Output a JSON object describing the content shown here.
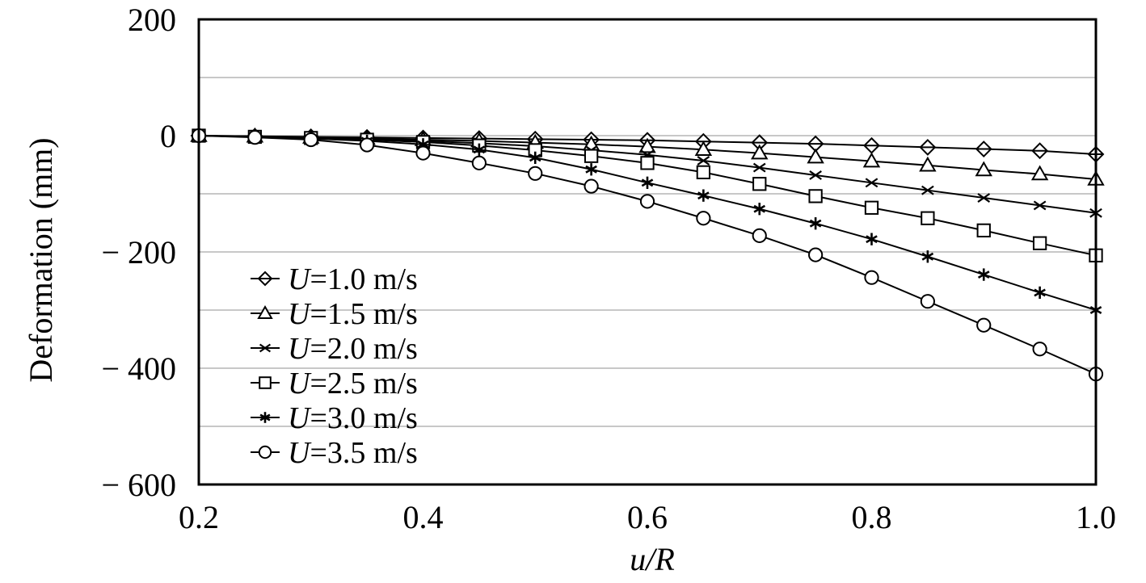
{
  "chart_data": {
    "type": "line",
    "xlabel": "u/R",
    "ylabel": "Deformation (mm)",
    "xlim": [
      0.2,
      1.0
    ],
    "ylim": [
      -600,
      200
    ],
    "x_ticks": [
      0.2,
      0.4,
      0.6,
      0.8,
      1.0
    ],
    "x_tick_labels": [
      "0.2",
      "0.4",
      "0.6",
      "0.8",
      "1.0"
    ],
    "y_ticks": [
      200,
      0,
      -200,
      -400,
      -600
    ],
    "y_tick_labels": [
      "200",
      "0",
      "− 200",
      "− 400",
      "− 600"
    ],
    "grid": "horizontal",
    "legend_position": "lower-left",
    "x": [
      0.2,
      0.25,
      0.3,
      0.35,
      0.4,
      0.45,
      0.5,
      0.55,
      0.6,
      0.65,
      0.7,
      0.75,
      0.8,
      0.85,
      0.9,
      0.95,
      1.0
    ],
    "series": [
      {
        "symbol": "U",
        "name": "=1.0 m/s",
        "marker": "diamond",
        "values": [
          0,
          -1,
          -2,
          -3,
          -4,
          -5,
          -6,
          -7,
          -8,
          -10,
          -12,
          -14,
          -17,
          -20,
          -23,
          -26,
          -32
        ]
      },
      {
        "symbol": "U",
        "name": "=1.5 m/s",
        "marker": "triangle",
        "values": [
          0,
          -1,
          -3,
          -5,
          -7,
          -9,
          -12,
          -15,
          -19,
          -24,
          -30,
          -37,
          -44,
          -51,
          -59,
          -66,
          -75
        ]
      },
      {
        "symbol": "U",
        "name": "=2.0 m/s",
        "marker": "x",
        "values": [
          0,
          -2,
          -4,
          -6,
          -9,
          -13,
          -18,
          -25,
          -33,
          -43,
          -55,
          -68,
          -81,
          -94,
          -107,
          -120,
          -133
        ]
      },
      {
        "symbol": "U",
        "name": "=2.5 m/s",
        "marker": "square",
        "values": [
          0,
          -2,
          -4,
          -7,
          -11,
          -17,
          -25,
          -35,
          -47,
          -63,
          -83,
          -104,
          -124,
          -142,
          -163,
          -185,
          -206
        ]
      },
      {
        "symbol": "U",
        "name": "=3.0 m/s",
        "marker": "asterisk",
        "values": [
          0,
          -2,
          -5,
          -9,
          -15,
          -24,
          -38,
          -58,
          -81,
          -103,
          -126,
          -151,
          -178,
          -208,
          -239,
          -270,
          -300
        ]
      },
      {
        "symbol": "U",
        "name": "=3.5 m/s",
        "marker": "circle",
        "values": [
          0,
          -3,
          -7,
          -16,
          -30,
          -47,
          -65,
          -87,
          -113,
          -142,
          -172,
          -205,
          -244,
          -285,
          -326,
          -367,
          -410
        ]
      }
    ]
  }
}
